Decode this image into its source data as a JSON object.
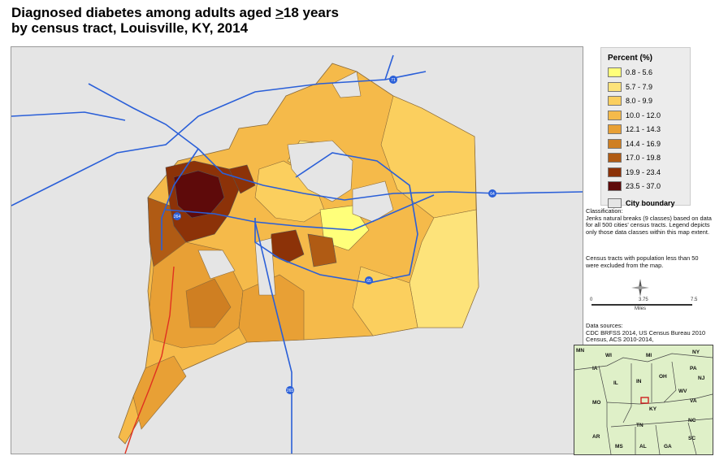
{
  "title": {
    "line1_prefix": "Diagnosed diabetes among adults aged ",
    "line1_ge": ">",
    "line1_suffix": "18 years",
    "line2": "by census tract, Louisville, KY, 2014"
  },
  "legend": {
    "title": "Percent (%)",
    "classes": [
      {
        "label": "0.8 - 5.6",
        "color": "#ffff7a"
      },
      {
        "label": "5.7 - 7.9",
        "color": "#fde37a"
      },
      {
        "label": "8.0 - 9.9",
        "color": "#fbcf5e"
      },
      {
        "label": "10.0 - 12.0",
        "color": "#f5ba4a"
      },
      {
        "label": "12.1 - 14.3",
        "color": "#e8a035"
      },
      {
        "label": "14.4 - 16.9",
        "color": "#cf7f22"
      },
      {
        "label": "17.0 - 19.8",
        "color": "#b05b14"
      },
      {
        "label": "19.9 - 23.4",
        "color": "#8c3208"
      },
      {
        "label": "23.5 - 37.0",
        "color": "#5e0a0a"
      }
    ],
    "city_boundary": {
      "label": "City boundary",
      "color": "#e5e5e5"
    }
  },
  "classification": {
    "heading": "Classification:",
    "text": "Jenks natural breaks (9 classes) based on data for all 500 cities' census tracts. Legend depicts only those data classes within this map extent."
  },
  "exclusion_note": "Census tracts with population less than 50 were excluded from the map.",
  "scale": {
    "left": "0",
    "mid": "3.75",
    "right": "7.5",
    "unit": "Miles"
  },
  "sources": {
    "heading": "Data sources:",
    "text": "CDC BRFSS 2014, US Census Bureau 2010 Census, ACS 2010-2014,"
  },
  "highway_shields": [
    "71",
    "64",
    "264",
    "65",
    "265"
  ],
  "inset": {
    "states": [
      "MN",
      "WI",
      "MI",
      "NY",
      "IA",
      "PA",
      "IL",
      "IN",
      "OH",
      "NJ",
      "MO",
      "WV",
      "KY",
      "VA",
      "TN",
      "NC",
      "AR",
      "MS",
      "AL",
      "GA",
      "SC"
    ]
  },
  "colors": {
    "highway": "#2a5fd8",
    "railroad": "#e03020",
    "background": "#e5e5e5"
  }
}
